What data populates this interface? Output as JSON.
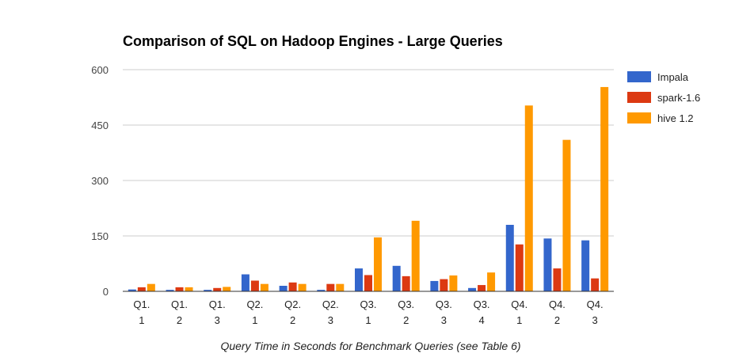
{
  "chart_data": {
    "type": "bar",
    "title": "Comparison of SQL on Hadoop Engines - Large Queries",
    "xlabel": "Query Time in Seconds for Benchmark Queries (see Table 6)",
    "ylabel": "",
    "ylim": [
      0,
      600
    ],
    "yticks": [
      "0",
      "150",
      "300",
      "450",
      "600"
    ],
    "grid": true,
    "legend_position": "right",
    "categories": [
      [
        "Q1.",
        "1"
      ],
      [
        "Q1.",
        "2"
      ],
      [
        "Q1.",
        "3"
      ],
      [
        "Q2.",
        "1"
      ],
      [
        "Q2.",
        "2"
      ],
      [
        "Q2.",
        "3"
      ],
      [
        "Q3.",
        "1"
      ],
      [
        "Q3.",
        "2"
      ],
      [
        "Q3.",
        "3"
      ],
      [
        "Q3.",
        "4"
      ],
      [
        "Q4.",
        "1"
      ],
      [
        "Q4.",
        "2"
      ],
      [
        "Q4.",
        "3"
      ]
    ],
    "series": [
      {
        "name": "Impala",
        "color": "#3366cc",
        "values": [
          5,
          4,
          4,
          46,
          15,
          4,
          62,
          69,
          28,
          9,
          180,
          143,
          138
        ]
      },
      {
        "name": "spark-1.6",
        "color": "#dc3912",
        "values": [
          11,
          11,
          9,
          29,
          24,
          20,
          44,
          41,
          33,
          17,
          127,
          62,
          35
        ]
      },
      {
        "name": "hive 1.2",
        "color": "#ff9900",
        "values": [
          20,
          11,
          12,
          20,
          20,
          20,
          146,
          191,
          43,
          51,
          503,
          410,
          553
        ]
      }
    ]
  }
}
